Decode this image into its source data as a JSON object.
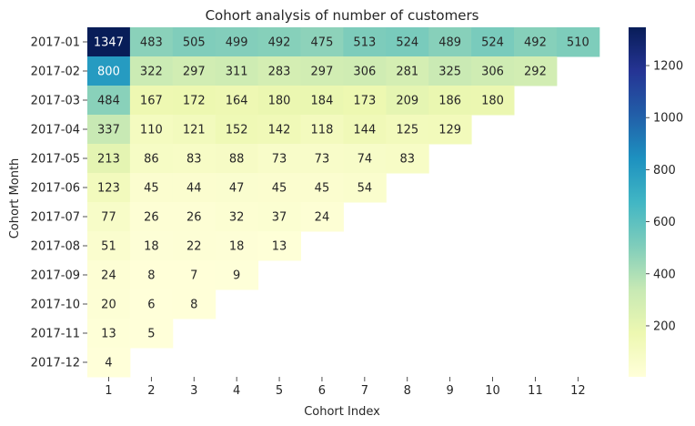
{
  "chart_data": {
    "type": "heatmap",
    "title": "Cohort analysis of number of customers",
    "xlabel": "Cohort Index",
    "ylabel": "Cohort Month",
    "x_categories": [
      "1",
      "2",
      "3",
      "4",
      "5",
      "6",
      "7",
      "8",
      "9",
      "10",
      "11",
      "12"
    ],
    "y_categories": [
      "2017-01",
      "2017-02",
      "2017-03",
      "2017-04",
      "2017-05",
      "2017-06",
      "2017-07",
      "2017-08",
      "2017-09",
      "2017-10",
      "2017-11",
      "2017-12"
    ],
    "values": [
      [
        1347,
        483,
        505,
        499,
        492,
        475,
        513,
        524,
        489,
        524,
        492,
        510
      ],
      [
        800,
        322,
        297,
        311,
        283,
        297,
        306,
        281,
        325,
        306,
        292
      ],
      [
        484,
        167,
        172,
        164,
        180,
        184,
        173,
        209,
        186,
        180
      ],
      [
        337,
        110,
        121,
        152,
        142,
        118,
        144,
        125,
        129
      ],
      [
        213,
        86,
        83,
        88,
        73,
        73,
        74,
        83
      ],
      [
        123,
        45,
        44,
        47,
        45,
        45,
        54
      ],
      [
        77,
        26,
        26,
        32,
        37,
        24
      ],
      [
        51,
        18,
        22,
        18,
        13
      ],
      [
        24,
        8,
        7,
        9
      ],
      [
        20,
        6,
        8
      ],
      [
        13,
        5
      ],
      [
        4
      ]
    ],
    "colormap": "YlGnBu",
    "vmin": 4,
    "vmax": 1347,
    "colorbar_ticks": [
      200,
      400,
      600,
      800,
      1000,
      1200
    ],
    "colorbar_tick_labels": [
      "200",
      "400",
      "600",
      "800",
      "1000",
      "1200"
    ],
    "annot_color_light": "#ffffff",
    "annot_color_dark": "#262626"
  }
}
